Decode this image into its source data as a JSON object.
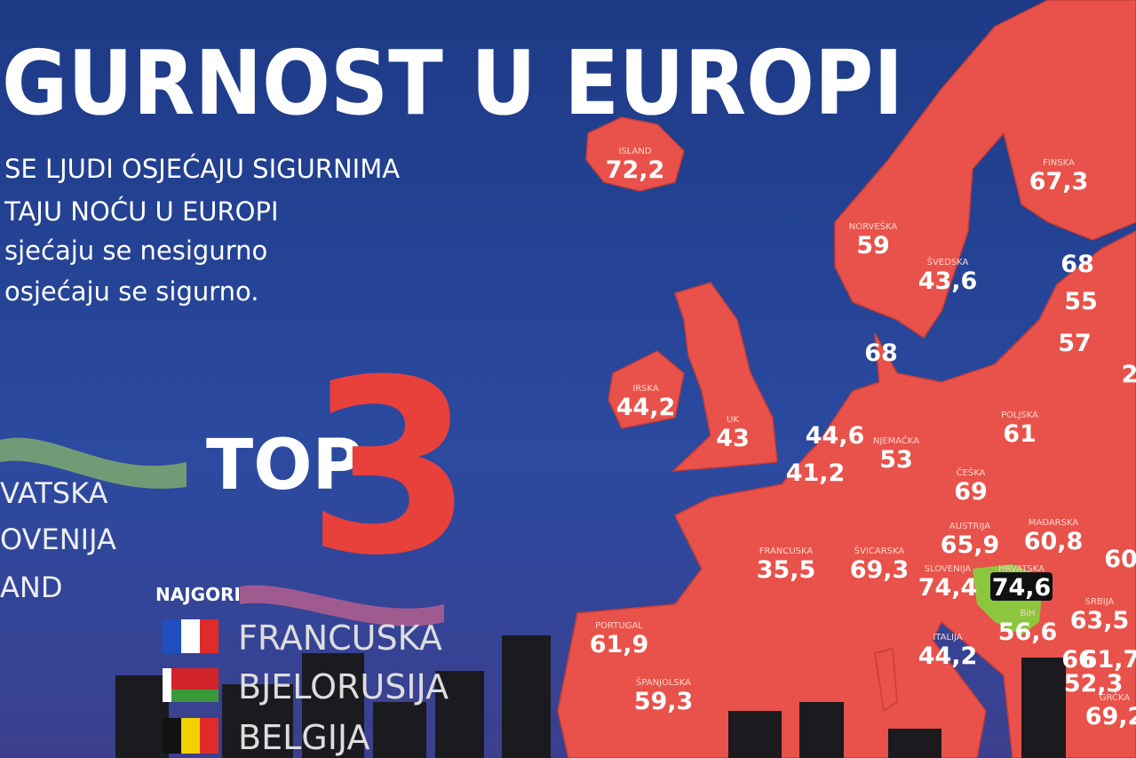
{
  "header": {
    "title": "GURNOST U EUROPI",
    "subtitle": [
      "SE LJUDI OSJEĆAJU SIGURNIMA",
      "TAJU NOĆU U EUROPI",
      "sjećaju se nesigurno",
      "osjećaju se sigurno."
    ]
  },
  "top3": {
    "label": "TOP",
    "number": "3",
    "best": [
      "VATSKA",
      "OVENIJA",
      "AND"
    ],
    "worst_title": "NAJGORI",
    "worst": [
      "FRANCUSKA",
      "BJELORUSIJA",
      "BELGIJA"
    ]
  },
  "map": {
    "countries": [
      {
        "name": "ISLAND",
        "value": "72,2"
      },
      {
        "name": "FINSKA",
        "value": "67,3"
      },
      {
        "name": "NORVEŠKA",
        "value": "59"
      },
      {
        "name": "ŠVEDSKA",
        "value": "43,6"
      },
      {
        "value": "68"
      },
      {
        "value": "55"
      },
      {
        "value": "57"
      },
      {
        "value": "2"
      },
      {
        "value": "68"
      },
      {
        "name": "IRSKA",
        "value": "44,2"
      },
      {
        "name": "UK",
        "value": "43"
      },
      {
        "value": "44,6"
      },
      {
        "value": "41,2"
      },
      {
        "name": "NJEMAČKA",
        "value": "53"
      },
      {
        "name": "POLJSKA",
        "value": "61"
      },
      {
        "name": "ČEŠKA",
        "value": "69"
      },
      {
        "name": "AUSTRIJA",
        "value": "65,9"
      },
      {
        "name": "MAĐARSKA",
        "value": "60,8"
      },
      {
        "value": "60"
      },
      {
        "name": "FRANCUSKA",
        "value": "35,5"
      },
      {
        "name": "ŠVICARSKA",
        "value": "69,3"
      },
      {
        "name": "SLOVENIJA",
        "value": "74,4"
      },
      {
        "name": "HRVATSKA",
        "value": "74,6"
      },
      {
        "name": "BiH",
        "value": "56,6"
      },
      {
        "name": "SRBIJA",
        "value": "63,5"
      },
      {
        "name": "PORTUGAL",
        "value": "61,9"
      },
      {
        "name": "ŠPANJOLSKA",
        "value": "59,3"
      },
      {
        "name": "ITALIJA",
        "value": "44,2"
      },
      {
        "value": "66"
      },
      {
        "value": "61,7"
      },
      {
        "value": "52,3"
      },
      {
        "name": "GRČKA",
        "value": "69,2"
      }
    ]
  }
}
